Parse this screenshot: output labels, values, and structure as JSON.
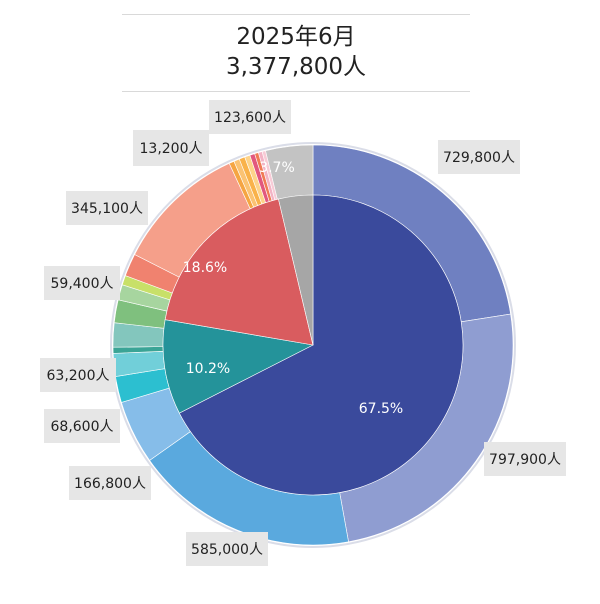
{
  "chart_data": {
    "type": "pie",
    "title": "2025年6月",
    "subtitle": "3,377,800人",
    "inner_ring": {
      "slices": [
        {
          "value": 67.5,
          "label": "67.5%",
          "color": "#3a4a9c"
        },
        {
          "value": 10.2,
          "label": "10.2%",
          "color": "#24939a"
        },
        {
          "value": 18.6,
          "label": "18.6%",
          "color": "#d95c5f"
        },
        {
          "value": 3.7,
          "label": "3.7%",
          "color": "#a6a6a6"
        }
      ]
    },
    "outer_ring": {
      "slices": [
        {
          "value": 729800,
          "label": "729,800人",
          "color": "#6f80c1"
        },
        {
          "value": 797900,
          "label": "797,900人",
          "color": "#8f9dd1"
        },
        {
          "value": 585000,
          "label": "585,000人",
          "color": "#5aa9de"
        },
        {
          "value": 166800,
          "label": "166,800人",
          "color": "#86bde9"
        },
        {
          "value": 68600,
          "label": "68,600人",
          "color": "#2cbfd0"
        },
        {
          "value": 60000,
          "label": "",
          "color": "#71cfd9"
        },
        {
          "value": 16000,
          "label": "",
          "color": "#3aa496"
        },
        {
          "value": 63200,
          "label": "63,200人",
          "color": "#83c6bd"
        },
        {
          "value": 60000,
          "label": "",
          "color": "#7fc07e"
        },
        {
          "value": 40000,
          "label": "",
          "color": "#a7d59f"
        },
        {
          "value": 25000,
          "label": "",
          "color": "#c8e068"
        },
        {
          "value": 59400,
          "label": "59,400人",
          "color": "#f0826f"
        },
        {
          "value": 345100,
          "label": "345,100人",
          "color": "#f59f8a"
        },
        {
          "value": 13200,
          "label": "13,200人",
          "color": "#f5a542"
        },
        {
          "value": 15000,
          "label": "",
          "color": "#fbc373"
        },
        {
          "value": 15000,
          "label": "",
          "color": "#f9b24a"
        },
        {
          "value": 14000,
          "label": "",
          "color": "#fdd38a"
        },
        {
          "value": 13000,
          "label": "",
          "color": "#e2577e"
        },
        {
          "value": 10000,
          "label": "",
          "color": "#f07a55"
        },
        {
          "value": 10000,
          "label": "",
          "color": "#f3b3c5"
        },
        {
          "value": 9000,
          "label": "",
          "color": "#f8cbd6"
        },
        {
          "value": 123600,
          "label": "123,600人",
          "color": "#c3c3c3"
        }
      ]
    },
    "legend": "none"
  }
}
